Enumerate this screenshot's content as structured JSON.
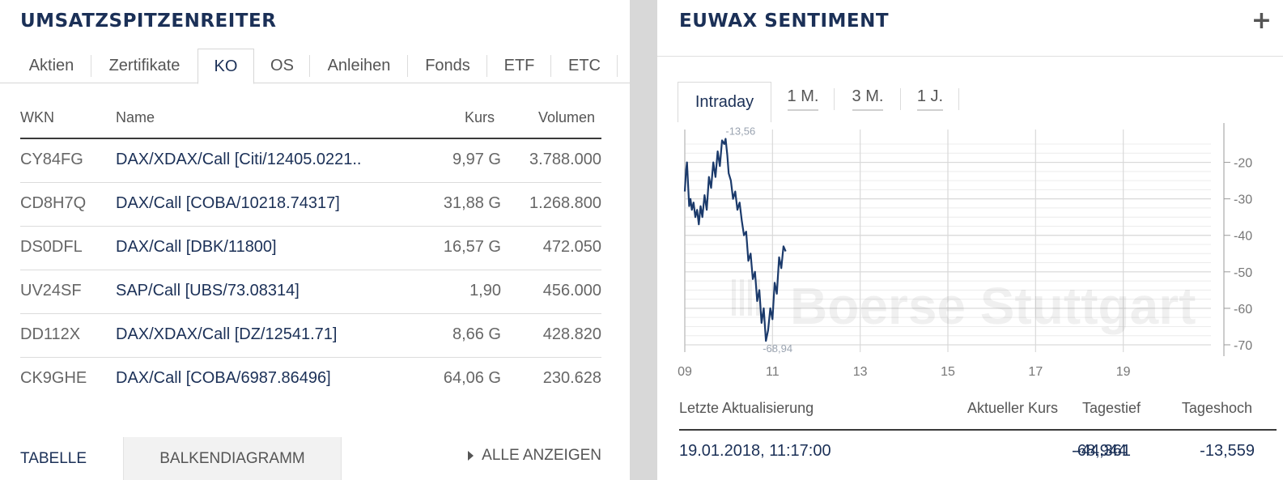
{
  "left": {
    "title": "UMSATZSPITZENREITER",
    "tabs": [
      "Aktien",
      "Zertifikate",
      "KO",
      "OS",
      "Anleihen",
      "Fonds",
      "ETF",
      "ETC"
    ],
    "active_tab": "KO",
    "columns": {
      "wkn": "WKN",
      "name": "Name",
      "kurs": "Kurs",
      "volumen": "Volumen"
    },
    "rows": [
      {
        "wkn": "CY84FG",
        "name": "DAX/XDAX/Call [Citi/12405.0221..",
        "kurs": "9,97 G",
        "volumen": "3.788.000"
      },
      {
        "wkn": "CD8H7Q",
        "name": "DAX/Call [COBA/10218.74317]",
        "kurs": "31,88 G",
        "volumen": "1.268.800"
      },
      {
        "wkn": "DS0DFL",
        "name": "DAX/Call [DBK/11800]",
        "kurs": "16,57 G",
        "volumen": "472.050"
      },
      {
        "wkn": "UV24SF",
        "name": "SAP/Call [UBS/73.08314]",
        "kurs": "1,90",
        "volumen": "456.000"
      },
      {
        "wkn": "DD112X",
        "name": "DAX/XDAX/Call [DZ/12541.71]",
        "kurs": "8,66 G",
        "volumen": "428.820"
      },
      {
        "wkn": "CK9GHE",
        "name": "DAX/Call [COBA/6987.86496]",
        "kurs": "64,06 G",
        "volumen": "230.628"
      }
    ],
    "bottom": {
      "tabelle": "TABELLE",
      "balken": "BALKENDIAGRAMM",
      "show_all": "ALLE ANZEIGEN"
    }
  },
  "right": {
    "title": "EUWAX SENTIMENT",
    "plus_icon": "plus-icon",
    "tabs": [
      "Intraday",
      "1 M.",
      "3 M.",
      "1 J."
    ],
    "active_tab": "Intraday",
    "watermark": "Boerse Stuttgart",
    "summary_headers": {
      "updated": "Letzte Aktualisierung",
      "kurs": "Aktueller Kurs",
      "tief": "Tagestief",
      "hoch": "Tageshoch"
    },
    "summary_values": {
      "updated": "19.01.2018, 11:17:00",
      "kurs": "-44,361",
      "tief": "-68,944",
      "hoch": "-13,559"
    }
  },
  "colors": {
    "navy": "#1b3057",
    "line": "#1b3a6b",
    "grid": "#e4e4e4",
    "gutter": "#d8d8d8"
  },
  "chart_data": {
    "type": "line",
    "x_ticks": [
      "09",
      "11",
      "13",
      "15",
      "17",
      "19"
    ],
    "y_ticks": [
      "-20",
      "-30",
      "-40",
      "-50",
      "-60",
      "-70"
    ],
    "xlim": [
      9,
      21
    ],
    "ylim": [
      -72,
      -11
    ],
    "max_label": "-13,56",
    "min_label": "-68,94",
    "series": [
      {
        "x": [
          9.0,
          9.03,
          9.05,
          9.07,
          9.1,
          9.13,
          9.16,
          9.2,
          9.24,
          9.28,
          9.32,
          9.36,
          9.4,
          9.45,
          9.5,
          9.55,
          9.6,
          9.65,
          9.7,
          9.75,
          9.8,
          9.85,
          9.9,
          9.93,
          9.97,
          10.0,
          10.05,
          10.1,
          10.15,
          10.2,
          10.25,
          10.3,
          10.35,
          10.4,
          10.45,
          10.5,
          10.55,
          10.6,
          10.65,
          10.7,
          10.75,
          10.8,
          10.85,
          10.9,
          10.95,
          11.0,
          11.05,
          11.1,
          11.15,
          11.2,
          11.25,
          11.3
        ],
        "values": [
          -28,
          -22,
          -20,
          -25,
          -32,
          -30,
          -33,
          -31,
          -35,
          -33,
          -37,
          -32,
          -35,
          -29,
          -33,
          -24,
          -27,
          -20,
          -24,
          -17,
          -21,
          -14,
          -15,
          -13.56,
          -18,
          -23,
          -25,
          -30,
          -28,
          -33,
          -31,
          -36,
          -40,
          -39,
          -47,
          -45,
          -52,
          -50,
          -58,
          -55,
          -64,
          -60,
          -68.94,
          -66,
          -60,
          -63,
          -53,
          -56,
          -46,
          -49,
          -43,
          -44.4
        ]
      }
    ]
  }
}
